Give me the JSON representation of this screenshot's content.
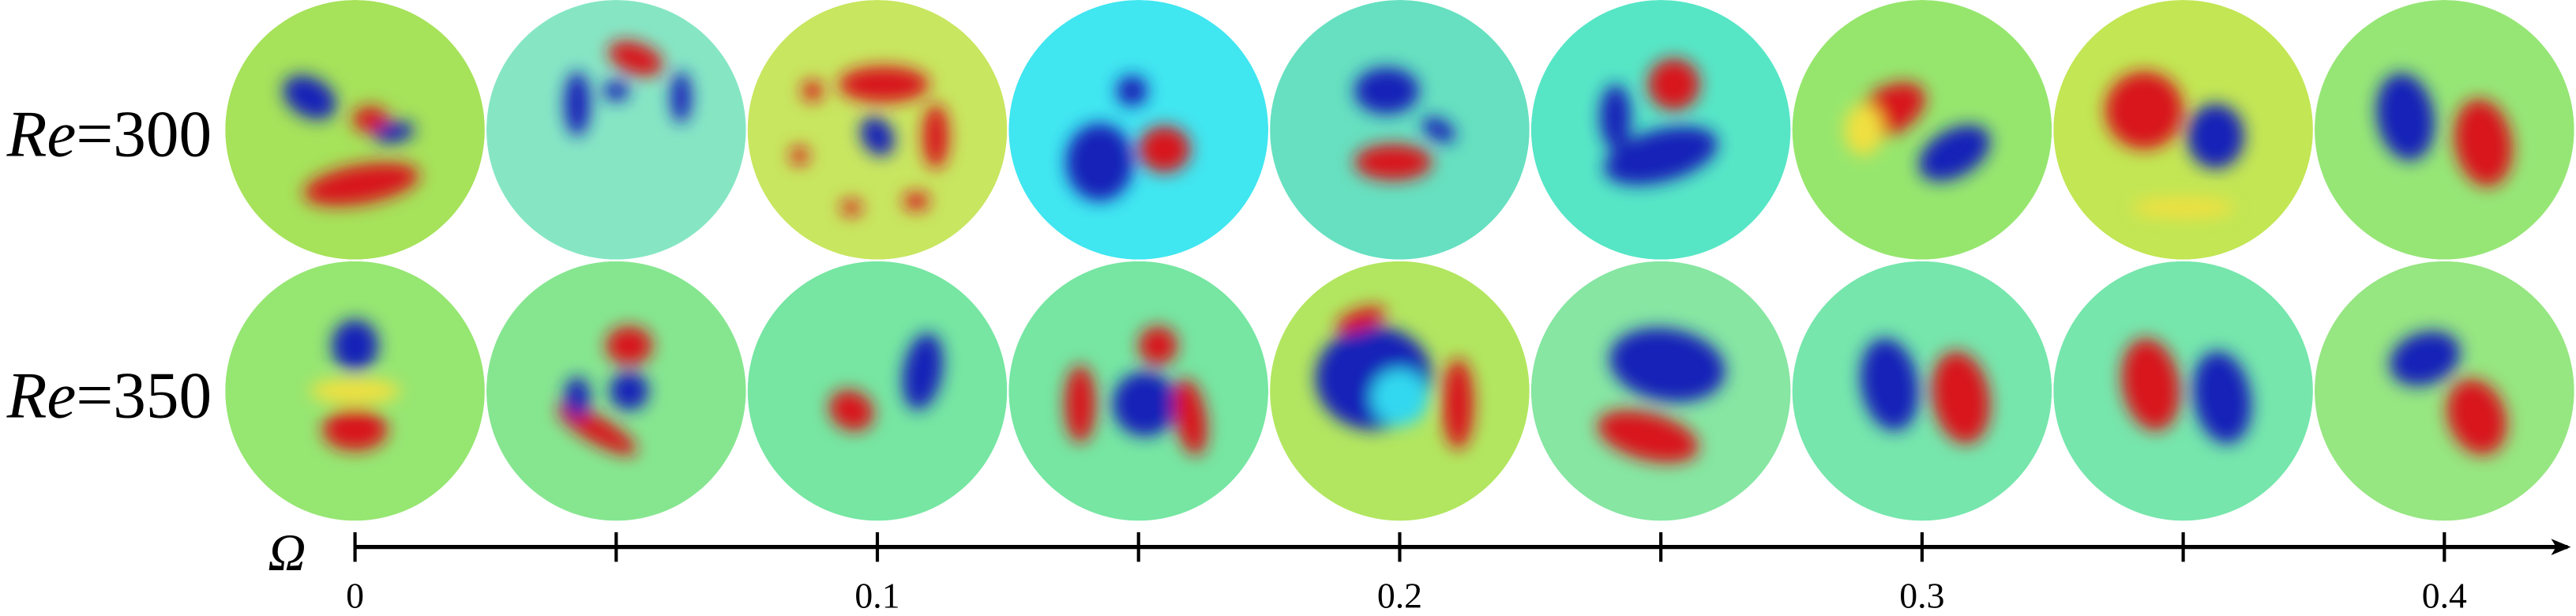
{
  "rows": [
    {
      "symbol": "Re",
      "value": "=300"
    },
    {
      "symbol": "Re",
      "value": "=350"
    }
  ],
  "axis": {
    "label": "Ω",
    "ticks": [
      0,
      0.1,
      0.2,
      0.3,
      0.4
    ],
    "minor_ticks": [
      0.05,
      0.15,
      0.25,
      0.35
    ]
  }
}
